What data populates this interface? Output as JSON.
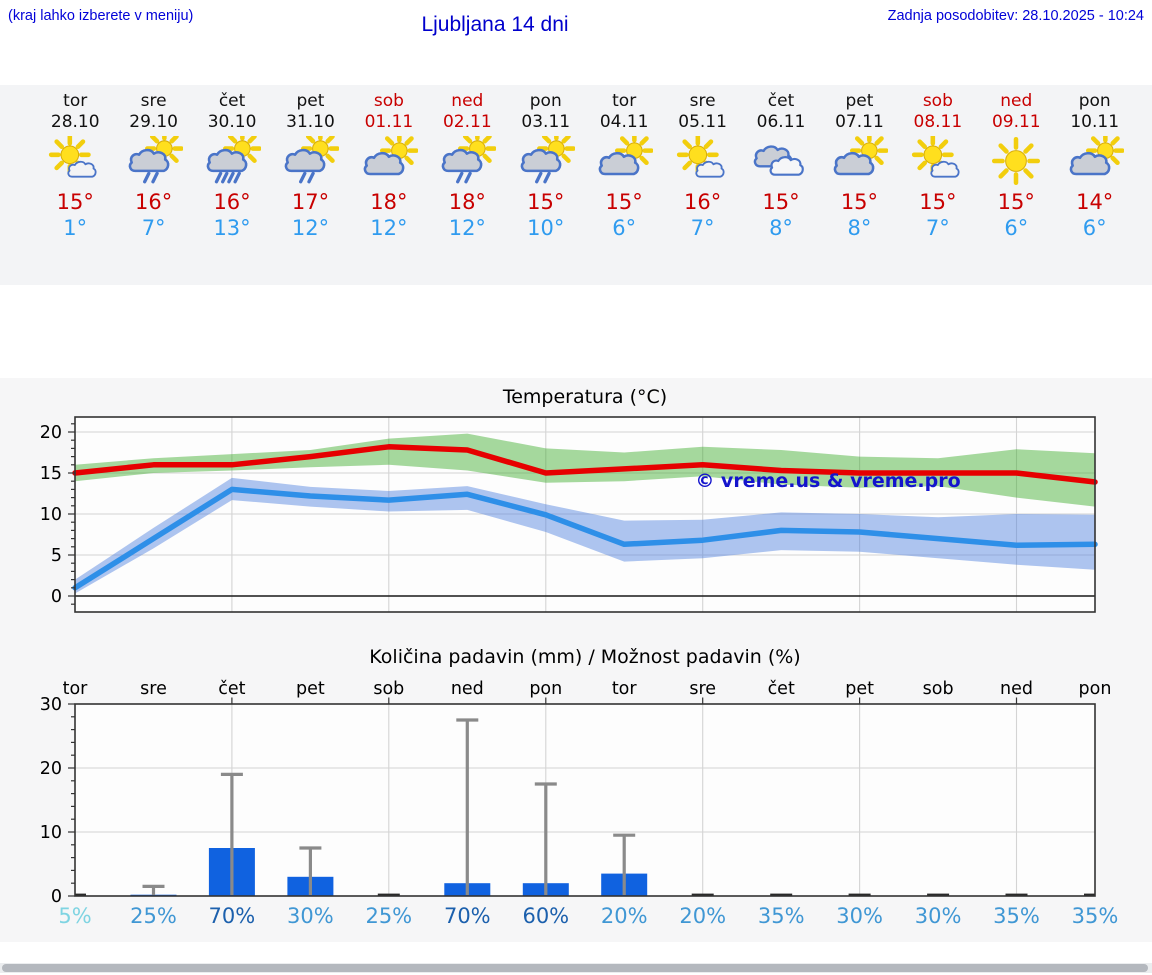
{
  "header": {
    "menu_hint": "(kraj lahko izberete v meniju)",
    "title": "Ljubljana 14 dni",
    "last_update": "Zadnja posodobitev: 28.10.2025 - 10:24"
  },
  "colors": {
    "link_blue": "#0202d8",
    "title_blue": "#0000cc",
    "high_red": "#c80000",
    "low_blue": "#2f9bef",
    "weekend_red": "#c80000",
    "weekday_black": "#111111",
    "bar_blue": "#1062e0",
    "whisker_gray": "#8a8a8a",
    "temp_max_line": "#e60000",
    "temp_min_line": "#2e8fe8",
    "max_band": "#3aab28",
    "min_band": "#4b7fde",
    "watermark_blue": "#1414cc",
    "prob_light": "#7fd4e2",
    "prob_mid": "#4097d4",
    "prob_dark": "#1c60ad"
  },
  "forecast": {
    "days": [
      {
        "name": "tor",
        "date": "28.10",
        "weekend": false,
        "icon": "sun-small-cloud",
        "high": "15°",
        "low": "1°"
      },
      {
        "name": "sre",
        "date": "29.10",
        "weekend": false,
        "icon": "cloud-sun-rain-2",
        "high": "16°",
        "low": "7°"
      },
      {
        "name": "čet",
        "date": "30.10",
        "weekend": false,
        "icon": "cloud-sun-rain-4",
        "high": "16°",
        "low": "13°"
      },
      {
        "name": "pet",
        "date": "31.10",
        "weekend": false,
        "icon": "cloud-sun-rain-2",
        "high": "17°",
        "low": "12°"
      },
      {
        "name": "sob",
        "date": "01.11",
        "weekend": true,
        "icon": "cloud-sun",
        "high": "18°",
        "low": "12°"
      },
      {
        "name": "ned",
        "date": "02.11",
        "weekend": true,
        "icon": "cloud-sun-rain-2",
        "high": "18°",
        "low": "12°"
      },
      {
        "name": "pon",
        "date": "03.11",
        "weekend": false,
        "icon": "cloud-sun-rain-2",
        "high": "15°",
        "low": "10°"
      },
      {
        "name": "tor",
        "date": "04.11",
        "weekend": false,
        "icon": "cloud-sun",
        "high": "15°",
        "low": "6°"
      },
      {
        "name": "sre",
        "date": "05.11",
        "weekend": false,
        "icon": "sun-small-cloud",
        "high": "16°",
        "low": "7°"
      },
      {
        "name": "čet",
        "date": "06.11",
        "weekend": false,
        "icon": "clouds",
        "high": "15°",
        "low": "8°"
      },
      {
        "name": "pet",
        "date": "07.11",
        "weekend": false,
        "icon": "cloud-sun",
        "high": "15°",
        "low": "8°"
      },
      {
        "name": "sob",
        "date": "08.11",
        "weekend": true,
        "icon": "sun-small-cloud",
        "high": "15°",
        "low": "7°"
      },
      {
        "name": "ned",
        "date": "09.11",
        "weekend": true,
        "icon": "sun",
        "high": "15°",
        "low": "6°"
      },
      {
        "name": "pon",
        "date": "10.11",
        "weekend": false,
        "icon": "cloud-sun",
        "high": "14°",
        "low": "6°"
      }
    ]
  },
  "chart_data": [
    {
      "type": "line",
      "title": "Temperatura (°C)",
      "x": [
        "tor 28.10",
        "sre 29.10",
        "čet 30.10",
        "pet 31.10",
        "sob 01.11",
        "ned 02.11",
        "pon 03.11",
        "tor 04.11",
        "sre 05.11",
        "čet 06.11",
        "pet 07.11",
        "sob 08.11",
        "ned 09.11",
        "pon 10.11"
      ],
      "ylim": [
        -2,
        21.8
      ],
      "yticks": [
        0,
        5,
        10,
        15,
        20
      ],
      "grid": true,
      "legend_position": "none",
      "watermark": "© vreme.us & vreme.pro",
      "series": [
        {
          "name": "max temperature",
          "color": "#e60000",
          "values": [
            15,
            16,
            16,
            17,
            18.2,
            17.8,
            15,
            15.5,
            16,
            15.3,
            15,
            15,
            15,
            13.9
          ]
        },
        {
          "name": "min temperature",
          "color": "#2e8fe8",
          "values": [
            1,
            7,
            13,
            12.2,
            11.7,
            12.4,
            9.9,
            6.3,
            6.8,
            8,
            7.8,
            7,
            6.2,
            6.3
          ]
        }
      ],
      "bands": [
        {
          "name": "max temperature range",
          "color": "#3aab28",
          "upper": [
            16,
            16.8,
            17.3,
            17.8,
            19.2,
            19.8,
            18,
            17.5,
            18.2,
            17.8,
            17,
            16.8,
            17.9,
            17.4
          ],
          "lower": [
            14,
            15,
            15.3,
            15.7,
            16,
            15.3,
            13.8,
            14,
            14.6,
            13.6,
            13.2,
            13.4,
            12,
            10.9
          ]
        },
        {
          "name": "min temperature range",
          "color": "#4b7fde",
          "upper": [
            2,
            8.3,
            14.4,
            13.3,
            12.8,
            13.4,
            11.2,
            9.2,
            9.3,
            10.2,
            10,
            9.6,
            10,
            9.9
          ],
          "lower": [
            0.3,
            5.8,
            11.7,
            10.9,
            10.3,
            10.5,
            7.8,
            4.2,
            4.6,
            5.6,
            5.4,
            4.6,
            3.8,
            3.2
          ]
        }
      ]
    },
    {
      "type": "bar",
      "title": "Količina padavin (mm) / Možnost padavin (%)",
      "categories": [
        "tor",
        "sre",
        "čet",
        "pet",
        "sob",
        "ned",
        "pon",
        "tor",
        "sre",
        "čet",
        "pet",
        "sob",
        "ned",
        "pon"
      ],
      "values": [
        0,
        0.2,
        7.5,
        3,
        0,
        2,
        2,
        3.5,
        0,
        0,
        0,
        0,
        0,
        0
      ],
      "whisker_max": [
        0,
        1.5,
        19,
        7.5,
        0,
        27.5,
        17.5,
        9.5,
        0,
        0,
        0,
        0,
        0,
        0
      ],
      "probabilities": [
        "5%",
        "25%",
        "70%",
        "30%",
        "25%",
        "70%",
        "60%",
        "20%",
        "20%",
        "35%",
        "30%",
        "30%",
        "35%",
        "35%"
      ],
      "prob_tones": [
        "light",
        "mid",
        "dark",
        "mid",
        "mid",
        "dark",
        "dark",
        "mid",
        "mid",
        "mid",
        "mid",
        "mid",
        "mid",
        "mid"
      ],
      "ylim": [
        0,
        30
      ],
      "yticks": [
        0,
        10,
        20,
        30
      ],
      "grid": true
    }
  ]
}
